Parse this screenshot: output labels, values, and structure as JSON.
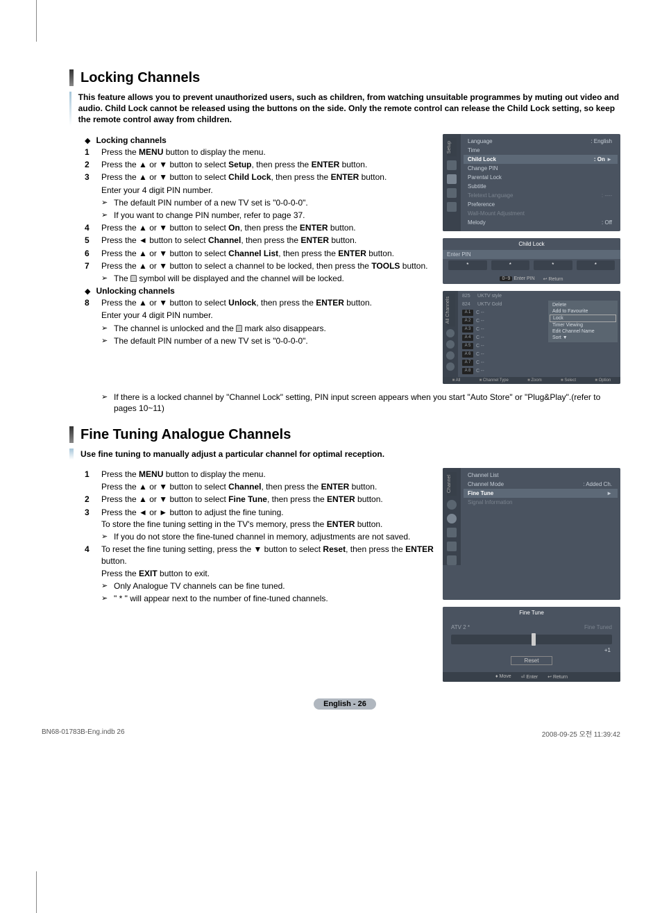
{
  "vline_color": "#888",
  "section1": {
    "title": "Locking Channels",
    "intro": "This feature allows you to prevent unauthorized users, such as children, from watching unsuitable programmes by muting out video and audio. Child Lock cannot be released using the buttons on the side. Only the remote control can release the Child Lock setting, so keep the remote control away from children.",
    "sub_lock": "Locking channels",
    "s1": {
      "n": "1",
      "t": "Press the MENU button to display the menu."
    },
    "s2": {
      "n": "2",
      "t": "Press the ▲ or ▼ button to select Setup, then press the ENTER button."
    },
    "s3": {
      "n": "3",
      "t": "Press the ▲ or ▼ button to select Child Lock, then press the ENTER button."
    },
    "s3b": "Enter your 4 digit PIN number.",
    "s3n1": "The default PIN number of a new TV set is \"0-0-0-0\".",
    "s3n2": "If you want to change PIN number, refer to page 37.",
    "s4": {
      "n": "4",
      "t": "Press the ▲ or ▼ button to select On, then press the ENTER button."
    },
    "s5": {
      "n": "5",
      "t": "Press the ◄ button to select Channel, then press the ENTER button."
    },
    "s6": {
      "n": "6",
      "t": "Press the ▲ or ▼ button to select Channel List, then press the ENTER button."
    },
    "s7": {
      "n": "7",
      "t": "Press the ▲ or ▼ button to select a channel to be locked, then press the TOOLS button."
    },
    "s7n": "The 🔒 symbol will be displayed and the channel will be locked.",
    "sub_unlock": "Unlocking channels",
    "s8": {
      "n": "8",
      "t": "Press the ▲ or ▼ button to select Unlock, then press the ENTER button."
    },
    "s8b": "Enter your 4 digit PIN number.",
    "s8n1": "The channel is unlocked and the 🔒 mark also disappears.",
    "s8n2": "The default PIN number of a new TV set is \"0-0-0-0\".",
    "s8n3": "If there is a locked channel by \"Channel Lock\" setting, PIN input screen appears when you start \"Auto Store\" or \"Plug&Play\".(refer to pages 10~11)"
  },
  "section2": {
    "title": "Fine Tuning Analogue Channels",
    "intro": "Use fine tuning to manually adjust a particular channel for optimal reception.",
    "s1": {
      "n": "1",
      "t": "Press the MENU button to display the menu.",
      "t2": "Press the ▲ or ▼ button to select Channel, then press the ENTER button."
    },
    "s2": {
      "n": "2",
      "t": "Press the ▲ or ▼ button to select Fine Tune, then press the ENTER button."
    },
    "s3": {
      "n": "3",
      "t": "Press the ◄ or ► button to adjust the fine tuning.",
      "t2": "To store the fine tuning setting in the TV's memory, press the ENTER button."
    },
    "s3n": "If you do not store the fine-tuned channel in memory, adjustments are not saved.",
    "s4": {
      "n": "4",
      "t": "To reset the fine tuning setting, press the ▼ button to select Reset, then press the ENTER button.",
      "t2": "Press the EXIT button to exit."
    },
    "s4n1": "Only Analogue TV channels can be fine tuned.",
    "s4n2": "\" * \" will appear next to the number of fine-tuned channels."
  },
  "ss_setup": {
    "tab": "Setup",
    "rows": [
      {
        "l": "Language",
        "r": ": English"
      },
      {
        "l": "Time",
        "r": ""
      },
      {
        "l": "Child Lock",
        "r": ": On",
        "hl": true,
        "arrow": "►"
      },
      {
        "l": "Change PIN",
        "r": ""
      },
      {
        "l": "Parental Lock",
        "r": ""
      },
      {
        "l": "Subtitle",
        "r": ""
      },
      {
        "l": "Teletext Language",
        "r": ": ----",
        "dim": true
      },
      {
        "l": "Preference",
        "r": ""
      },
      {
        "l": "Wall-Mount Adjustment",
        "r": "",
        "dim": true
      },
      {
        "l": "Melody",
        "r": ": Off"
      }
    ]
  },
  "ss_childlock": {
    "title": "Child Lock",
    "enter": "Enter PIN",
    "asterisk": "*",
    "foot_key": "0~9",
    "foot_enter": "Enter PIN",
    "foot_return": "↩ Return"
  },
  "ss_channels": {
    "tab": "All Channels",
    "top": [
      {
        "n": "824",
        "name": "UKTV Gold"
      },
      {
        "n": "825",
        "name": "UKTV style"
      }
    ],
    "list": [
      {
        "a": "A 1",
        "c": "C --"
      },
      {
        "a": "A 2",
        "c": "C --"
      },
      {
        "a": "A 3",
        "c": "C --"
      },
      {
        "a": "A 4",
        "c": "C --"
      },
      {
        "a": "A 5",
        "c": "C --"
      },
      {
        "a": "A 6",
        "c": "C --"
      },
      {
        "a": "A 7",
        "c": "C --"
      },
      {
        "a": "A 8",
        "c": "C --"
      }
    ],
    "popup": [
      "Delete",
      "Add to Favourite",
      "Lock",
      "Timer Viewing",
      "Edit Channel Name",
      "Sort                ▼"
    ],
    "popup_sel": 2,
    "foot": [
      "Channel Type",
      "Zoom",
      "Select",
      "Option"
    ],
    "all": "All"
  },
  "ss_channel_menu": {
    "tab": "Channel",
    "rows": [
      {
        "l": "Channel List",
        "r": ""
      },
      {
        "l": "Channel Mode",
        "r": ": Added Ch."
      },
      {
        "l": "Fine Tune",
        "r": "",
        "hl": true,
        "arrow": "►"
      },
      {
        "l": "Signal Information",
        "r": "",
        "dim": true
      }
    ]
  },
  "ss_finetune": {
    "title": "Fine Tune",
    "ch": "ATV 2 *",
    "status": "Fine Tuned",
    "val": "+1",
    "reset": "Reset",
    "foot": [
      "♦ Move",
      "⏎ Enter",
      "↩ Return"
    ]
  },
  "page_num": "English - 26",
  "doc_foot": {
    "l": "BN68-01783B-Eng.indb   26",
    "r": "2008-09-25   오전 11:39:42"
  }
}
